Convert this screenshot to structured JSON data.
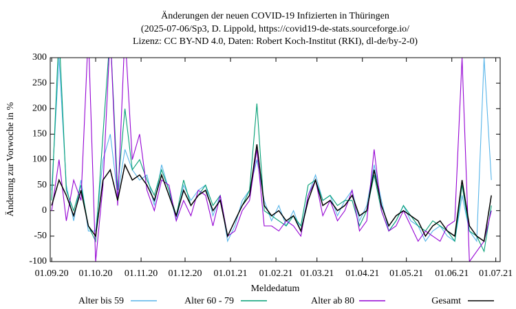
{
  "chart_data": {
    "type": "line",
    "title": "Änderungen der neuen COVID-19 Infizierten in Thüringen",
    "subtitle": [
      "(2025-07-06/Sp3, D. Lippold, https://covid19-de-stats.sourceforge.io/",
      "Lizenz: CC BY-ND 4.0, Daten: Robert Koch-Institut (RKI), dl-de/by-2-0)"
    ],
    "xlabel": "Meldedatum",
    "ylabel": "Änderung zur Vorwoche in %",
    "x": [
      "2020-09-01",
      "2020-09-06",
      "2020-09-11",
      "2020-09-16",
      "2020-09-21",
      "2020-09-26",
      "2020-10-01",
      "2020-10-06",
      "2020-10-11",
      "2020-10-16",
      "2020-10-21",
      "2020-10-26",
      "2020-10-31",
      "2020-11-05",
      "2020-11-10",
      "2020-11-15",
      "2020-11-20",
      "2020-11-25",
      "2020-11-30",
      "2020-12-05",
      "2020-12-10",
      "2020-12-15",
      "2020-12-20",
      "2020-12-25",
      "2020-12-30",
      "2021-01-04",
      "2021-01-09",
      "2021-01-14",
      "2021-01-19",
      "2021-01-24",
      "2021-01-29",
      "2021-02-03",
      "2021-02-08",
      "2021-02-13",
      "2021-02-18",
      "2021-02-23",
      "2021-02-28",
      "2021-03-05",
      "2021-03-10",
      "2021-03-15",
      "2021-03-20",
      "2021-03-25",
      "2021-03-30",
      "2021-04-04",
      "2021-04-09",
      "2021-04-14",
      "2021-04-19",
      "2021-04-24",
      "2021-04-29",
      "2021-05-04",
      "2021-05-09",
      "2021-05-14",
      "2021-05-19",
      "2021-05-24",
      "2021-05-29",
      "2021-06-03",
      "2021-06-08",
      "2021-06-13",
      "2021-06-18",
      "2021-06-23",
      "2021-06-28"
    ],
    "series": [
      {
        "name": "Alter bis 59",
        "color": "#56b4e9",
        "values": [
          40,
          300,
          50,
          -20,
          60,
          -40,
          -40,
          100,
          150,
          30,
          120,
          80,
          60,
          70,
          10,
          90,
          40,
          -20,
          50,
          20,
          40,
          50,
          -10,
          30,
          -60,
          -30,
          20,
          40,
          100,
          20,
          -20,
          10,
          -30,
          0,
          -40,
          30,
          70,
          20,
          30,
          -10,
          20,
          40,
          -20,
          10,
          90,
          20,
          -40,
          -20,
          10,
          -20,
          -30,
          -60,
          -40,
          -30,
          -50,
          -60,
          30,
          -40,
          -60,
          300,
          60
        ]
      },
      {
        "name": "Alter 60 - 79",
        "color": "#009e73",
        "values": [
          20,
          350,
          40,
          0,
          50,
          -30,
          -60,
          150,
          350,
          40,
          200,
          80,
          100,
          60,
          30,
          80,
          40,
          -10,
          60,
          10,
          30,
          50,
          10,
          30,
          -50,
          -20,
          10,
          40,
          210,
          0,
          -10,
          -20,
          -30,
          -10,
          -30,
          50,
          60,
          20,
          30,
          10,
          20,
          20,
          -30,
          0,
          70,
          0,
          -40,
          -20,
          10,
          -10,
          -30,
          -40,
          -20,
          -30,
          -40,
          -60,
          50,
          -40,
          -50,
          -80,
          10
        ]
      },
      {
        "name": "Alter ab 80",
        "color": "#9400d3",
        "values": [
          0,
          100,
          -20,
          60,
          20,
          350,
          -100,
          50,
          350,
          10,
          350,
          100,
          150,
          40,
          0,
          60,
          50,
          -20,
          20,
          -10,
          40,
          30,
          -30,
          30,
          -50,
          -40,
          0,
          20,
          120,
          -30,
          -30,
          -40,
          -20,
          -30,
          -50,
          30,
          60,
          -10,
          20,
          -20,
          0,
          40,
          -40,
          -20,
          120,
          0,
          -40,
          -30,
          0,
          -30,
          -60,
          -40,
          -50,
          -60,
          -30,
          -20,
          300,
          -100,
          -80,
          -60,
          0
        ]
      },
      {
        "name": "Gesamt",
        "color": "#000000",
        "values": [
          10,
          60,
          30,
          -10,
          40,
          -30,
          -50,
          60,
          80,
          20,
          90,
          60,
          70,
          50,
          20,
          70,
          30,
          -10,
          40,
          10,
          30,
          40,
          0,
          20,
          -50,
          -20,
          10,
          30,
          130,
          10,
          -10,
          0,
          -20,
          -10,
          -40,
          20,
          60,
          10,
          20,
          0,
          10,
          30,
          -10,
          0,
          80,
          10,
          -30,
          -10,
          0,
          -10,
          -20,
          -50,
          -30,
          -20,
          -40,
          -50,
          60,
          -30,
          -50,
          -60,
          30
        ]
      }
    ],
    "xlim": [
      "2020-08-31",
      "2021-07-04"
    ],
    "xticks": [
      {
        "value": "2020-09-01",
        "label": "01.09.20"
      },
      {
        "value": "2020-10-01",
        "label": "01.10.20"
      },
      {
        "value": "2020-11-01",
        "label": "01.11.20"
      },
      {
        "value": "2020-12-01",
        "label": "01.12.20"
      },
      {
        "value": "2021-01-01",
        "label": "01.01.21"
      },
      {
        "value": "2021-02-01",
        "label": "01.02.21"
      },
      {
        "value": "2021-03-01",
        "label": "01.03.21"
      },
      {
        "value": "2021-04-01",
        "label": "01.04.21"
      },
      {
        "value": "2021-05-01",
        "label": "01.05.21"
      },
      {
        "value": "2021-06-01",
        "label": "01.06.21"
      },
      {
        "value": "2021-07-01",
        "label": "01.07.21"
      }
    ],
    "ylim": [
      -100,
      300
    ],
    "yticks": [
      -100,
      -50,
      0,
      50,
      100,
      150,
      200,
      250,
      300
    ],
    "grid": false
  }
}
